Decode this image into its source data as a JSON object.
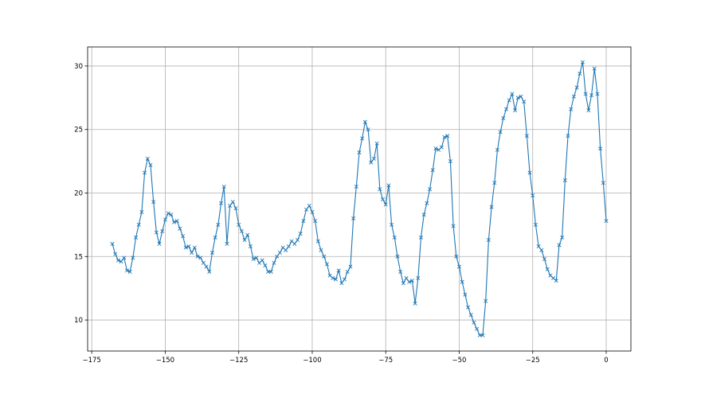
{
  "chart_data": {
    "type": "line",
    "marker": "x",
    "color": "#1f77b4",
    "grid": true,
    "title": "",
    "xlabel": "",
    "ylabel": "",
    "xlim": [
      -176.4,
      8.4
    ],
    "ylim": [
      7.56,
      31.5
    ],
    "xticks": [
      -175,
      -150,
      -125,
      -100,
      -75,
      -50,
      -25,
      0
    ],
    "xtick_labels": [
      "−175",
      "−150",
      "−125",
      "−100",
      "−75",
      "−50",
      "−25",
      "0"
    ],
    "yticks": [
      10,
      15,
      20,
      25,
      30
    ],
    "ytick_labels": [
      "10",
      "15",
      "20",
      "25",
      "30"
    ],
    "x": [
      -168,
      -167,
      -166,
      -165,
      -164,
      -163,
      -162,
      -161,
      -160,
      -159,
      -158,
      -157,
      -156,
      -155,
      -154,
      -153,
      -152,
      -151,
      -150,
      -149,
      -148,
      -147,
      -146,
      -145,
      -144,
      -143,
      -142,
      -141,
      -140,
      -139,
      -138,
      -137,
      -136,
      -135,
      -134,
      -133,
      -132,
      -131,
      -130,
      -129,
      -128,
      -127,
      -126,
      -125,
      -124,
      -123,
      -122,
      -121,
      -120,
      -119,
      -118,
      -117,
      -116,
      -115,
      -114,
      -113,
      -112,
      -111,
      -110,
      -109,
      -108,
      -107,
      -106,
      -105,
      -104,
      -103,
      -102,
      -101,
      -100,
      -99,
      -98,
      -97,
      -96,
      -95,
      -94,
      -93,
      -92,
      -91,
      -90,
      -89,
      -88,
      -87,
      -86,
      -85,
      -84,
      -83,
      -82,
      -81,
      -80,
      -79,
      -78,
      -77,
      -76,
      -75,
      -74,
      -73,
      -72,
      -71,
      -70,
      -69,
      -68,
      -67,
      -66,
      -65,
      -64,
      -63,
      -62,
      -61,
      -60,
      -59,
      -58,
      -57,
      -56,
      -55,
      -54,
      -53,
      -52,
      -51,
      -50,
      -49,
      -48,
      -47,
      -46,
      -45,
      -44,
      -43,
      -42,
      -41,
      -40,
      -39,
      -38,
      -37,
      -36,
      -35,
      -34,
      -33,
      -32,
      -31,
      -30,
      -29,
      -28,
      -27,
      -26,
      -25,
      -24,
      -23,
      -22,
      -21,
      -20,
      -19,
      -18,
      -17,
      -16,
      -15,
      -14,
      -13,
      -12,
      -11,
      -10,
      -9,
      -8,
      -7,
      -6,
      -5,
      -4,
      -3,
      -2,
      -1,
      0
    ],
    "y": [
      16.0,
      15.2,
      14.7,
      14.6,
      14.9,
      13.9,
      13.8,
      14.9,
      16.5,
      17.5,
      18.5,
      21.6,
      22.7,
      22.2,
      19.3,
      16.9,
      16.0,
      17.0,
      17.9,
      18.4,
      18.3,
      17.7,
      17.8,
      17.2,
      16.6,
      15.7,
      15.8,
      15.3,
      15.7,
      15.0,
      14.9,
      14.5,
      14.2,
      13.8,
      15.3,
      16.5,
      17.5,
      19.2,
      20.5,
      16.0,
      19.0,
      19.3,
      18.8,
      17.5,
      17.0,
      16.3,
      16.7,
      15.8,
      14.8,
      14.9,
      14.5,
      14.7,
      14.3,
      13.8,
      13.8,
      14.5,
      15.0,
      15.3,
      15.7,
      15.5,
      15.8,
      16.2,
      16.0,
      16.3,
      16.8,
      17.8,
      18.7,
      19.0,
      18.5,
      17.8,
      16.2,
      15.5,
      15.0,
      14.4,
      13.5,
      13.3,
      13.2,
      13.9,
      12.9,
      13.2,
      13.8,
      14.2,
      18.0,
      20.5,
      23.2,
      24.3,
      25.6,
      25.0,
      22.4,
      22.7,
      23.9,
      20.3,
      19.5,
      19.1,
      20.6,
      17.5,
      16.5,
      15.0,
      13.8,
      12.9,
      13.3,
      13.0,
      13.1,
      11.3,
      13.3,
      16.5,
      18.3,
      19.2,
      20.3,
      21.8,
      23.5,
      23.4,
      23.6,
      24.4,
      24.5,
      22.5,
      17.4,
      15.0,
      14.2,
      13.0,
      12.0,
      11.0,
      10.4,
      9.8,
      9.3,
      8.8,
      8.8,
      11.5,
      16.3,
      18.9,
      20.8,
      23.4,
      24.8,
      25.9,
      26.6,
      27.3,
      27.8,
      26.5,
      27.5,
      27.6,
      27.2,
      24.5,
      21.6,
      19.8,
      17.5,
      15.8,
      15.5,
      14.8,
      14.0,
      13.5,
      13.3,
      13.1,
      15.9,
      16.5,
      21.0,
      24.5,
      26.6,
      27.6,
      28.3,
      29.4,
      30.3,
      27.8,
      26.5,
      27.7,
      29.8,
      27.8,
      23.5,
      20.8,
      17.8
    ]
  }
}
